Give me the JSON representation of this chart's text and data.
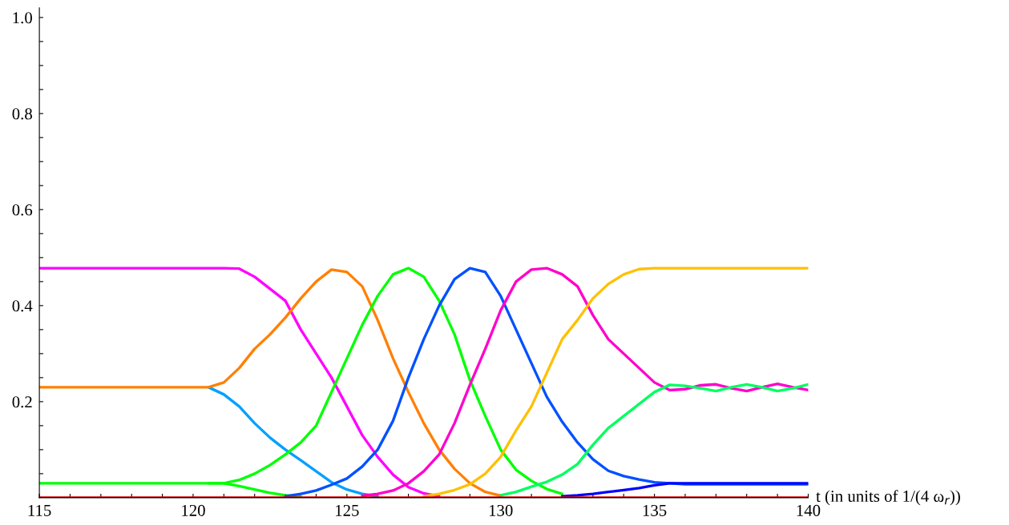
{
  "chart_data": {
    "type": "line",
    "xlabel": "t (in units of 1/(4 ω$_{r}$))",
    "x": [
      115,
      116,
      117,
      118,
      119,
      120,
      120.5,
      121,
      121.5,
      122,
      122.5,
      123,
      123.5,
      124,
      124.5,
      125,
      125.5,
      126,
      126.5,
      127,
      127.5,
      128,
      128.5,
      129,
      129.5,
      130,
      130.5,
      131,
      131.5,
      132,
      132.5,
      133,
      133.5,
      134,
      134.5,
      135,
      135.5,
      136,
      136.5,
      137,
      137.5,
      138,
      138.5,
      139,
      139.5,
      140
    ],
    "xlim": [
      115,
      140
    ],
    "xticks": [
      115,
      {
        "value": 116,
        "label": null
      },
      {
        "value": 117,
        "label": null
      },
      {
        "value": 118,
        "label": null
      },
      {
        "value": 119,
        "label": null
      },
      120,
      {
        "value": 121,
        "label": null
      },
      {
        "value": 122,
        "label": null
      },
      {
        "value": 123,
        "label": null
      },
      {
        "value": 124,
        "label": null
      },
      125,
      {
        "value": 126,
        "label": null
      },
      {
        "value": 127,
        "label": null
      },
      {
        "value": 128,
        "label": null
      },
      {
        "value": 129,
        "label": null
      },
      130,
      {
        "value": 131,
        "label": null
      },
      {
        "value": 132,
        "label": null
      },
      {
        "value": 133,
        "label": null
      },
      {
        "value": 134,
        "label": null
      },
      135,
      {
        "value": 136,
        "label": null
      },
      {
        "value": 137,
        "label": null
      },
      {
        "value": 138,
        "label": null
      },
      {
        "value": 139,
        "label": null
      },
      140
    ],
    "ylim": [
      0,
      1.02
    ],
    "yticks": [
      {
        "value": 0.05,
        "label": null
      },
      {
        "value": 0.1,
        "label": null
      },
      {
        "value": 0.15,
        "label": null
      },
      0.2,
      {
        "value": 0.25,
        "label": null
      },
      {
        "value": 0.3,
        "label": null
      },
      {
        "value": 0.35,
        "label": null
      },
      0.4,
      {
        "value": 0.45,
        "label": null
      },
      {
        "value": 0.5,
        "label": null
      },
      {
        "value": 0.55,
        "label": null
      },
      0.6,
      {
        "value": 0.65,
        "label": null
      },
      {
        "value": 0.7,
        "label": null
      },
      {
        "value": 0.75,
        "label": null
      },
      0.8,
      {
        "value": 0.85,
        "label": null
      },
      {
        "value": 0.9,
        "label": null
      },
      {
        "value": 0.95,
        "label": null
      },
      {
        "value": 1.0,
        "label": "1.0"
      }
    ],
    "grid": false,
    "marker": "none",
    "line_style": "solid",
    "series": [
      {
        "color": "#ff00ff",
        "values": [
          0.478,
          0.478,
          0.478,
          0.478,
          0.478,
          0.478,
          0.478,
          0.478,
          0.477,
          0.46,
          0.435,
          0.41,
          0.35,
          0.3,
          0.25,
          0.19,
          0.13,
          0.085,
          0.048,
          0.022,
          0.009,
          0.003,
          null,
          null,
          null,
          null,
          null,
          null,
          null,
          null,
          null,
          null,
          null,
          null,
          null,
          null,
          null,
          null,
          null,
          null,
          null,
          null,
          null,
          null,
          null,
          null
        ]
      },
      {
        "color": "#00a0ff",
        "values": [
          null,
          null,
          null,
          null,
          null,
          null,
          0.23,
          0.215,
          0.19,
          0.155,
          0.125,
          0.1,
          0.078,
          0.055,
          0.032,
          0.017,
          0.008,
          0.003,
          null,
          null,
          null,
          null,
          null,
          null,
          null,
          null,
          null,
          null,
          null,
          null,
          null,
          null,
          null,
          null,
          null,
          null,
          null,
          null,
          null,
          null,
          null,
          null,
          null,
          null,
          null,
          null
        ]
      },
      {
        "color": "#ff8000",
        "values": [
          0.23,
          0.23,
          0.23,
          0.23,
          0.23,
          0.23,
          0.23,
          0.24,
          0.27,
          0.31,
          0.34,
          0.375,
          0.415,
          0.45,
          0.475,
          0.47,
          0.44,
          0.37,
          0.29,
          0.22,
          0.155,
          0.1,
          0.06,
          0.03,
          0.012,
          0.004,
          null,
          null,
          null,
          null,
          null,
          null,
          null,
          null,
          null,
          null,
          null,
          null,
          null,
          null,
          null,
          null,
          null,
          null,
          null,
          null
        ]
      },
      {
        "color": "#00ff00",
        "values": [
          null,
          null,
          null,
          null,
          null,
          null,
          0.03,
          0.03,
          0.024,
          0.017,
          0.01,
          0.005,
          0.003,
          null,
          null,
          null,
          null,
          null,
          null,
          null,
          null,
          null,
          null,
          null,
          null,
          null,
          null,
          null,
          null,
          null,
          null,
          null,
          null,
          null,
          null,
          null,
          null,
          null,
          null,
          null,
          null,
          null,
          null,
          null,
          null,
          null
        ]
      },
      {
        "color": "#00ff00",
        "values": [
          0.03,
          0.03,
          0.03,
          0.03,
          0.03,
          0.03,
          0.03,
          0.03,
          0.037,
          0.05,
          0.068,
          0.09,
          0.115,
          0.15,
          0.22,
          0.29,
          0.36,
          0.42,
          0.465,
          0.478,
          0.46,
          0.41,
          0.34,
          0.245,
          0.17,
          0.1,
          0.058,
          0.035,
          0.018,
          0.008,
          null,
          null,
          null,
          null,
          null,
          null,
          null,
          null,
          null,
          null,
          null,
          null,
          null,
          null,
          null,
          null
        ]
      },
      {
        "color": "#0050ff",
        "values": [
          null,
          null,
          null,
          null,
          null,
          null,
          null,
          null,
          null,
          null,
          null,
          0.003,
          0.008,
          0.015,
          0.027,
          0.04,
          0.065,
          0.1,
          0.16,
          0.25,
          0.33,
          0.4,
          0.455,
          0.478,
          0.47,
          0.42,
          0.35,
          0.28,
          0.21,
          0.158,
          0.115,
          0.08,
          0.056,
          0.045,
          0.038,
          0.032,
          0.03,
          0.028,
          0.028,
          0.028,
          0.028,
          0.028,
          0.028,
          0.028,
          0.028,
          0.028
        ]
      },
      {
        "color": "#ff00cc",
        "values": [
          null,
          null,
          null,
          null,
          null,
          null,
          null,
          null,
          null,
          null,
          null,
          null,
          null,
          null,
          null,
          null,
          0.004,
          0.008,
          0.015,
          0.03,
          0.055,
          0.09,
          0.155,
          0.235,
          0.31,
          0.39,
          0.45,
          0.475,
          0.478,
          0.465,
          0.44,
          0.38,
          0.33,
          0.3,
          0.27,
          0.24,
          0.224,
          0.226,
          0.234,
          0.236,
          0.228,
          0.222,
          0.23,
          0.237,
          0.23,
          0.224
        ]
      },
      {
        "color": "#ffc000",
        "values": [
          null,
          null,
          null,
          null,
          null,
          null,
          null,
          null,
          null,
          null,
          null,
          null,
          null,
          null,
          null,
          null,
          null,
          null,
          null,
          null,
          0.003,
          0.008,
          0.016,
          0.028,
          0.05,
          0.085,
          0.14,
          0.19,
          0.26,
          0.33,
          0.37,
          0.415,
          0.445,
          0.465,
          0.476,
          0.478,
          0.478,
          0.478,
          0.478,
          0.478,
          0.478,
          0.478,
          0.478,
          0.478,
          0.478,
          0.478
        ]
      },
      {
        "color": "#00ff60",
        "values": [
          null,
          null,
          null,
          null,
          null,
          null,
          null,
          null,
          null,
          null,
          null,
          null,
          null,
          null,
          null,
          null,
          null,
          null,
          null,
          null,
          null,
          null,
          null,
          null,
          null,
          0.005,
          0.012,
          0.023,
          0.033,
          0.048,
          0.07,
          0.11,
          0.145,
          0.17,
          0.195,
          0.22,
          0.235,
          0.233,
          0.228,
          0.222,
          0.23,
          0.236,
          0.23,
          0.222,
          0.228,
          0.236
        ]
      },
      {
        "color": "#0000ff",
        "values": [
          null,
          null,
          null,
          null,
          null,
          null,
          null,
          null,
          null,
          null,
          null,
          null,
          null,
          null,
          null,
          null,
          null,
          null,
          null,
          null,
          null,
          null,
          null,
          null,
          null,
          null,
          null,
          null,
          null,
          0.003,
          0.005,
          0.008,
          0.012,
          0.016,
          0.02,
          0.026,
          0.03,
          0.03,
          0.03,
          0.03,
          0.03,
          0.03,
          0.03,
          0.03,
          0.03,
          0.03
        ]
      },
      {
        "color": "#e00000",
        "values": [
          0,
          0,
          0,
          0,
          0,
          0,
          0,
          0,
          0,
          0,
          0,
          0,
          0,
          0,
          0,
          0,
          0,
          0,
          0,
          0,
          0,
          0,
          0,
          0,
          0,
          0,
          0,
          0,
          0,
          0,
          0,
          0,
          0,
          0,
          0,
          0,
          0,
          0,
          0,
          0,
          0,
          0,
          0,
          0,
          0,
          0
        ]
      }
    ]
  }
}
